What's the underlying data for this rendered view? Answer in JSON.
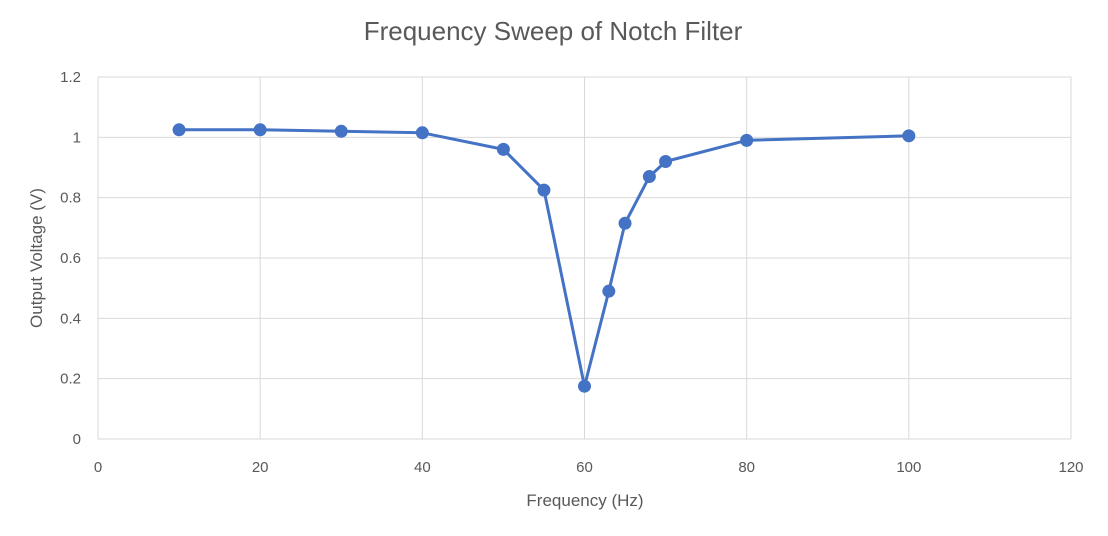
{
  "chart_data": {
    "type": "scatter",
    "title": "Frequency Sweep of Notch Filter",
    "xlabel": "Frequency (Hz)",
    "ylabel": "Output Voltage (V)",
    "xlim": [
      0,
      120
    ],
    "ylim": [
      0,
      1.2
    ],
    "x_ticks": [
      0,
      20,
      40,
      60,
      80,
      100,
      120
    ],
    "y_ticks": [
      0,
      0.2,
      0.4,
      0.6,
      0.8,
      1,
      1.2
    ],
    "grid": true,
    "colors": {
      "series": "#4472c4",
      "grid": "#d9d9d9",
      "text": "#595959"
    },
    "series": [
      {
        "name": "Output Voltage",
        "x": [
          10,
          20,
          30,
          40,
          50,
          55,
          60,
          63,
          65,
          68,
          70,
          80,
          100
        ],
        "y": [
          1.025,
          1.025,
          1.02,
          1.015,
          0.96,
          0.825,
          0.175,
          0.49,
          0.715,
          0.87,
          0.92,
          0.99,
          1.005
        ]
      }
    ]
  }
}
